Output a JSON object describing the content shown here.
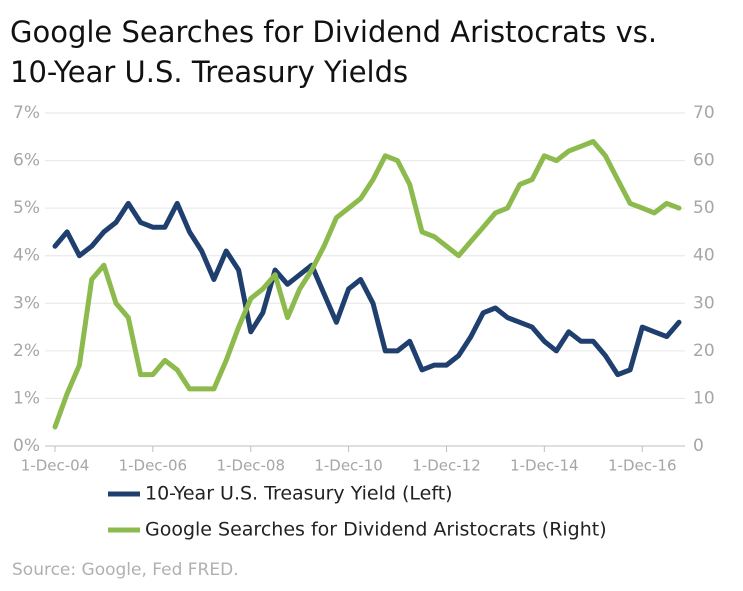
{
  "chart_data": {
    "type": "line",
    "title": "Google Searches for Dividend Aristocrats vs.",
    "title_line2": "10-Year U.S. Treasury Yields",
    "source": "Source: Google, Fed FRED.",
    "x": [
      "2004-12-01",
      "2005-03-01",
      "2005-06-01",
      "2005-09-01",
      "2005-12-01",
      "2006-03-01",
      "2006-06-01",
      "2006-09-01",
      "2006-12-01",
      "2007-03-01",
      "2007-06-01",
      "2007-09-01",
      "2007-12-01",
      "2008-03-01",
      "2008-06-01",
      "2008-09-01",
      "2008-12-01",
      "2009-03-01",
      "2009-06-01",
      "2009-09-01",
      "2009-12-01",
      "2010-03-01",
      "2010-06-01",
      "2010-09-01",
      "2010-12-01",
      "2011-03-01",
      "2011-06-01",
      "2011-09-01",
      "2011-12-01",
      "2012-03-01",
      "2012-06-01",
      "2012-09-01",
      "2012-12-01",
      "2013-03-01",
      "2013-06-01",
      "2013-09-01",
      "2013-12-01",
      "2014-03-01",
      "2014-06-01",
      "2014-09-01",
      "2014-12-01",
      "2015-03-01",
      "2015-06-01",
      "2015-09-01",
      "2015-12-01",
      "2016-03-01",
      "2016-06-01",
      "2016-09-01",
      "2016-12-01",
      "2017-03-01",
      "2017-06-01",
      "2017-09-01"
    ],
    "series": [
      {
        "name": "10-Year U.S. Treasury Yield (Left)",
        "color": "#1f3f6e",
        "axis": "y",
        "values": [
          4.2,
          4.5,
          4.0,
          4.2,
          4.5,
          4.7,
          5.1,
          4.7,
          4.6,
          4.6,
          5.1,
          4.5,
          4.1,
          3.5,
          4.1,
          3.7,
          2.4,
          2.8,
          3.7,
          3.4,
          3.6,
          3.8,
          3.2,
          2.6,
          3.3,
          3.5,
          3.0,
          2.0,
          2.0,
          2.2,
          1.6,
          1.7,
          1.7,
          1.9,
          2.3,
          2.8,
          2.9,
          2.7,
          2.6,
          2.5,
          2.2,
          2.0,
          2.4,
          2.2,
          2.2,
          1.9,
          1.5,
          1.6,
          2.5,
          2.4,
          2.3,
          2.6
        ]
      },
      {
        "name": "Google Searches for Dividend Aristocrats (Right)",
        "color": "#8cba4c",
        "axis": "y2",
        "values": [
          4,
          11,
          17,
          35,
          38,
          30,
          27,
          15,
          15,
          18,
          16,
          12,
          12,
          12,
          18,
          25,
          31,
          33,
          36,
          27,
          33,
          37,
          42,
          48,
          50,
          52,
          56,
          61,
          60,
          55,
          45,
          44,
          42,
          40,
          43,
          46,
          49,
          50,
          55,
          56,
          61,
          60,
          62,
          63,
          64,
          61,
          56,
          51,
          50,
          49,
          51,
          50
        ]
      }
    ],
    "xlim": [
      "2004-12-01",
      "2017-10-01"
    ],
    "xticks": [
      {
        "value": "2004-12-01",
        "label": "1-Dec-04"
      },
      {
        "value": "2006-12-01",
        "label": "1-Dec-06"
      },
      {
        "value": "2008-12-01",
        "label": "1-Dec-08"
      },
      {
        "value": "2010-12-01",
        "label": "1-Dec-10"
      },
      {
        "value": "2012-12-01",
        "label": "1-Dec-12"
      },
      {
        "value": "2014-12-01",
        "label": "1-Dec-14"
      },
      {
        "value": "2016-12-01",
        "label": "1-Dec-16"
      }
    ],
    "ylim": [
      0,
      7
    ],
    "yticks": [
      {
        "value": 0,
        "label": "0%"
      },
      {
        "value": 1,
        "label": "1%"
      },
      {
        "value": 2,
        "label": "2%"
      },
      {
        "value": 3,
        "label": "3%"
      },
      {
        "value": 4,
        "label": "4%"
      },
      {
        "value": 5,
        "label": "5%"
      },
      {
        "value": 6,
        "label": "6%"
      },
      {
        "value": 7,
        "label": "7%"
      }
    ],
    "y2lim": [
      0,
      70
    ],
    "y2ticks": [
      0,
      10,
      20,
      30,
      40,
      50,
      60,
      70
    ],
    "grid": true
  }
}
